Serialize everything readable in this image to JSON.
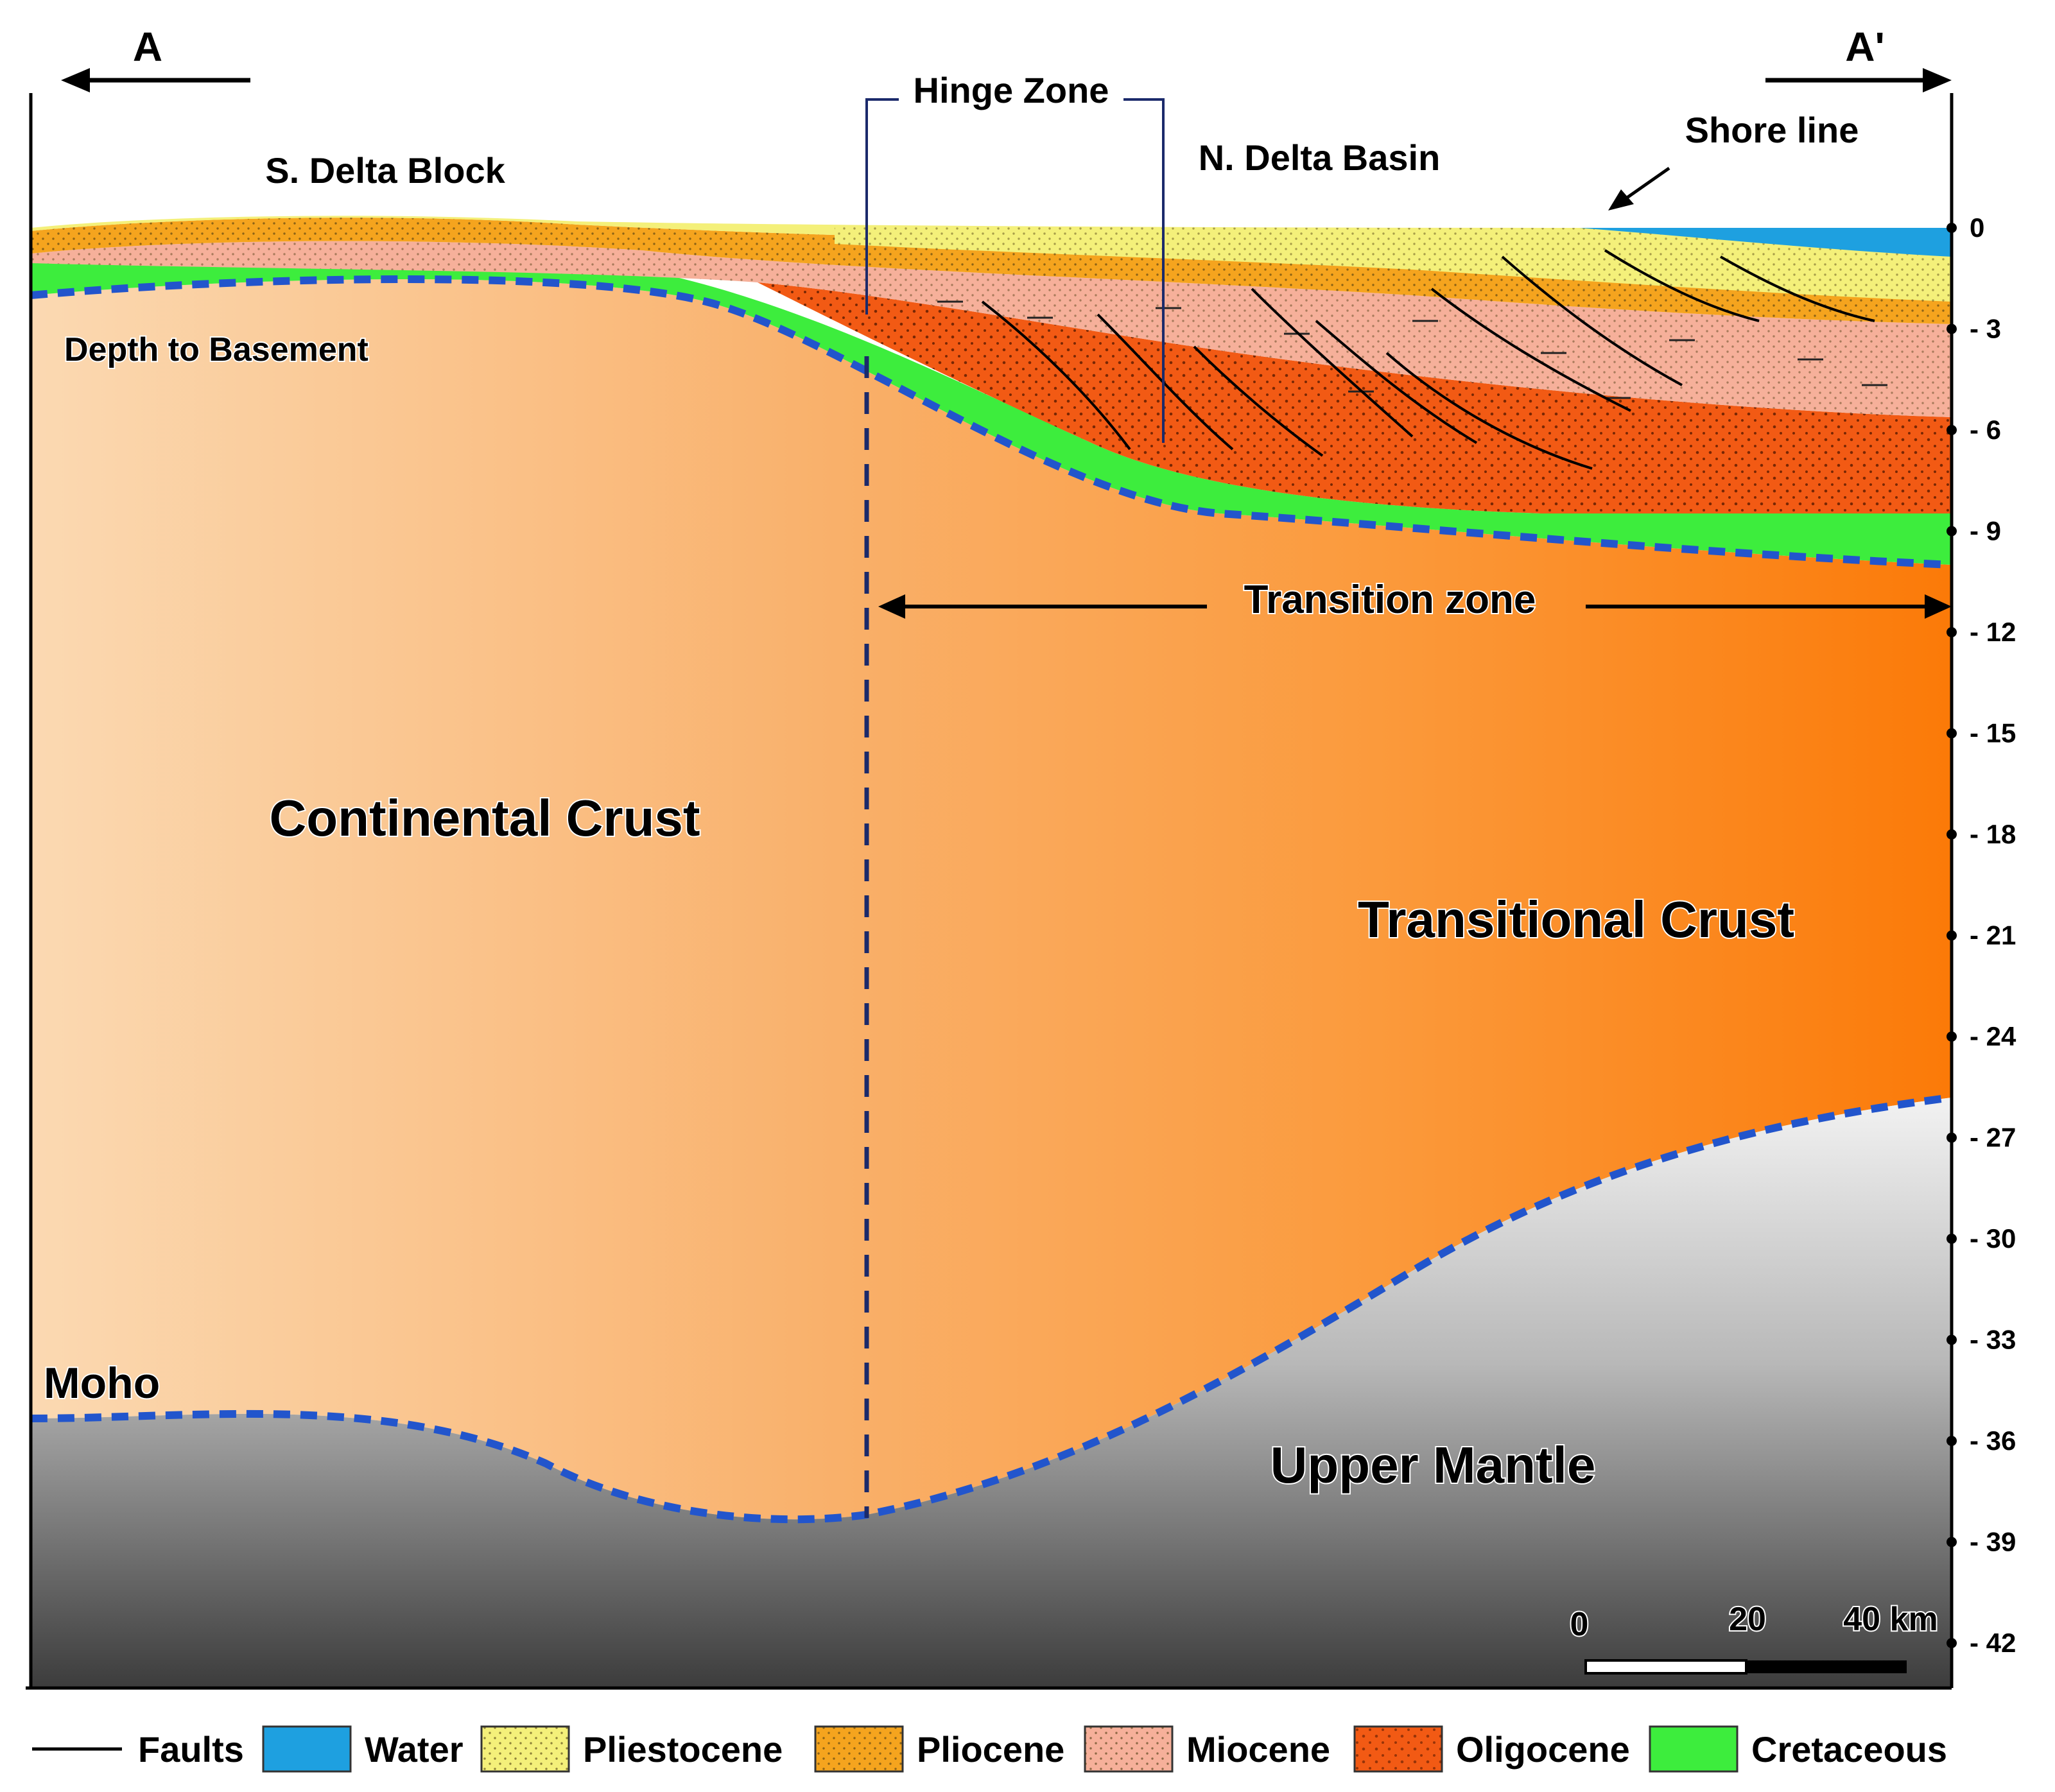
{
  "section": {
    "start": "A",
    "end": "A'"
  },
  "labels": {
    "hinge_zone": "Hinge Zone",
    "south_block": "S. Delta Block",
    "north_basin": "N. Delta Basin",
    "shore_line": "Shore line",
    "depth_to_basement": "Depth to Basement",
    "transition_zone": "Transition zone",
    "continental_crust": "Continental Crust",
    "transitional_crust": "Transitional Crust",
    "moho": "Moho",
    "upper_mantle": "Upper Mantle"
  },
  "depth_axis": {
    "unit": "km",
    "ticks": [
      "0",
      "- 3",
      "- 6",
      "- 9",
      "- 12",
      "- 15",
      "- 18",
      "- 21",
      "- 24",
      "- 27",
      "- 30",
      "- 33",
      "- 36",
      "- 39",
      "- 42"
    ]
  },
  "scale_bar": {
    "labels": [
      "0",
      "20",
      "40 km"
    ]
  },
  "legend": [
    {
      "name": "Faults",
      "color": "#000000",
      "type": "line"
    },
    {
      "name": "Water",
      "color": "#1ea0e0",
      "type": "swatch"
    },
    {
      "name": "Pliestocene",
      "color": "#f4f07a",
      "type": "swatch"
    },
    {
      "name": "Pliocene",
      "color": "#f5a41e",
      "type": "swatch"
    },
    {
      "name": "Miocene",
      "color": "#f6b09a",
      "type": "swatch"
    },
    {
      "name": "Oligocene",
      "color": "#f25a14",
      "type": "swatch"
    },
    {
      "name": "Cretaceous",
      "color": "#3ded3d",
      "type": "swatch"
    }
  ]
}
